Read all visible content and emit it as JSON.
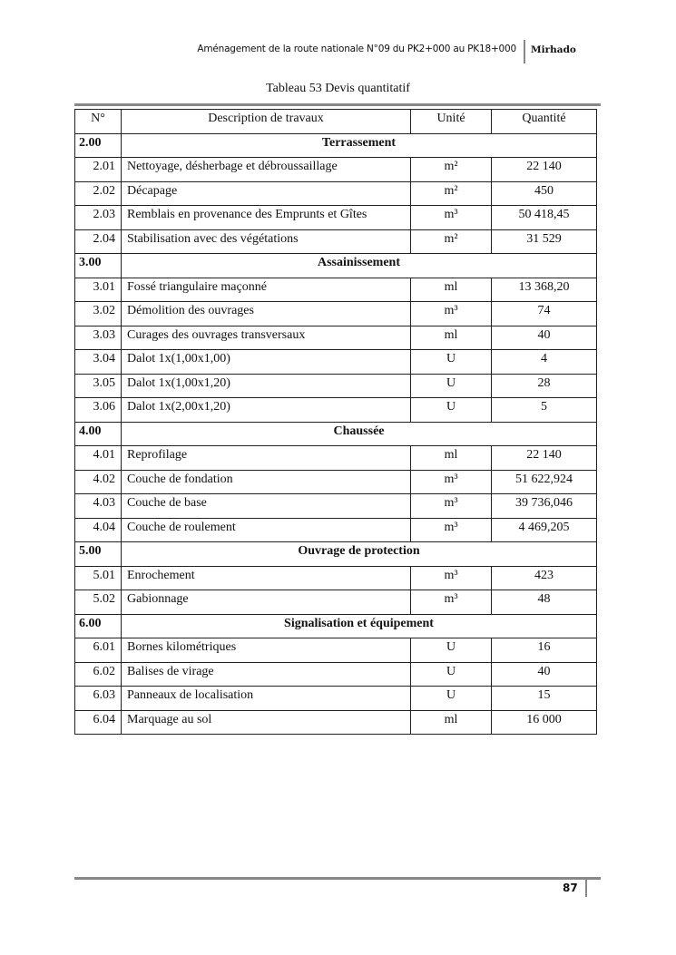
{
  "header": {
    "title": "Aménagement de la route nationale N°09 du PK2+000 au PK18+000",
    "author": "Mirhado"
  },
  "caption": "Tableau 53 Devis quantitatif",
  "columns": [
    "N°",
    "Description de travaux",
    "Unité",
    "Quantité"
  ],
  "sections": [
    {
      "num": "2.00",
      "title": "Terrassement",
      "rows": [
        [
          "2.01",
          "Nettoyage, désherbage et débroussaillage",
          "m²",
          "22 140"
        ],
        [
          "2.02",
          "Décapage",
          "m²",
          "450"
        ],
        [
          "2.03",
          "Remblais en provenance des Emprunts et Gîtes",
          "m³",
          "50 418,45"
        ],
        [
          "2.04",
          "Stabilisation avec des végétations",
          "m²",
          "31 529"
        ]
      ]
    },
    {
      "num": "3.00",
      "title": "Assainissement",
      "rows": [
        [
          "3.01",
          "Fossé triangulaire maçonné",
          "ml",
          "13 368,20"
        ],
        [
          "3.02",
          "Démolition des ouvrages",
          "m³",
          "74"
        ],
        [
          "3.03",
          "Curages des ouvrages transversaux",
          "ml",
          "40"
        ],
        [
          "3.04",
          "Dalot 1x(1,00x1,00)",
          "U",
          "4"
        ],
        [
          "3.05",
          "Dalot 1x(1,00x1,20)",
          "U",
          "28"
        ],
        [
          "3.06",
          "Dalot 1x(2,00x1,20)",
          "U",
          "5"
        ]
      ]
    },
    {
      "num": "4.00",
      "title": "Chaussée",
      "rows": [
        [
          "4.01",
          "Reprofilage",
          "ml",
          "22 140"
        ],
        [
          "4.02",
          "Couche de fondation",
          "m³",
          "51 622,924"
        ],
        [
          "4.03",
          "Couche de base",
          "m³",
          "39 736,046"
        ],
        [
          "4.04",
          "Couche de roulement",
          "m³",
          "4 469,205"
        ]
      ]
    },
    {
      "num": "5.00",
      "title": "Ouvrage de protection",
      "rows": [
        [
          "5.01",
          "Enrochement",
          "m³",
          "423"
        ],
        [
          "5.02",
          "Gabionnage",
          "m³",
          "48"
        ]
      ]
    },
    {
      "num": "6.00",
      "title": "Signalisation et équipement",
      "rows": [
        [
          "6.01",
          "Bornes kilométriques",
          "U",
          "16"
        ],
        [
          "6.02",
          "Balises de virage",
          "U",
          "40"
        ],
        [
          "6.03",
          "Panneaux de localisation",
          "U",
          "15"
        ],
        [
          "6.04",
          "Marquage au sol",
          "ml",
          "16 000"
        ]
      ]
    }
  ],
  "footer": {
    "page_number": "87"
  }
}
